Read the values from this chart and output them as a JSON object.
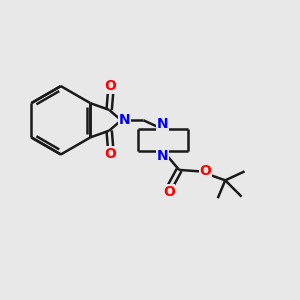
{
  "bg_color": "#e8e8e8",
  "bond_color": "#1a1a1a",
  "N_color": "#0000ff",
  "O_color": "#ff0000",
  "bond_width": 1.8,
  "figsize": [
    3.0,
    3.0
  ],
  "dpi": 100,
  "xlim": [
    0,
    10
  ],
  "ylim": [
    0,
    10
  ]
}
